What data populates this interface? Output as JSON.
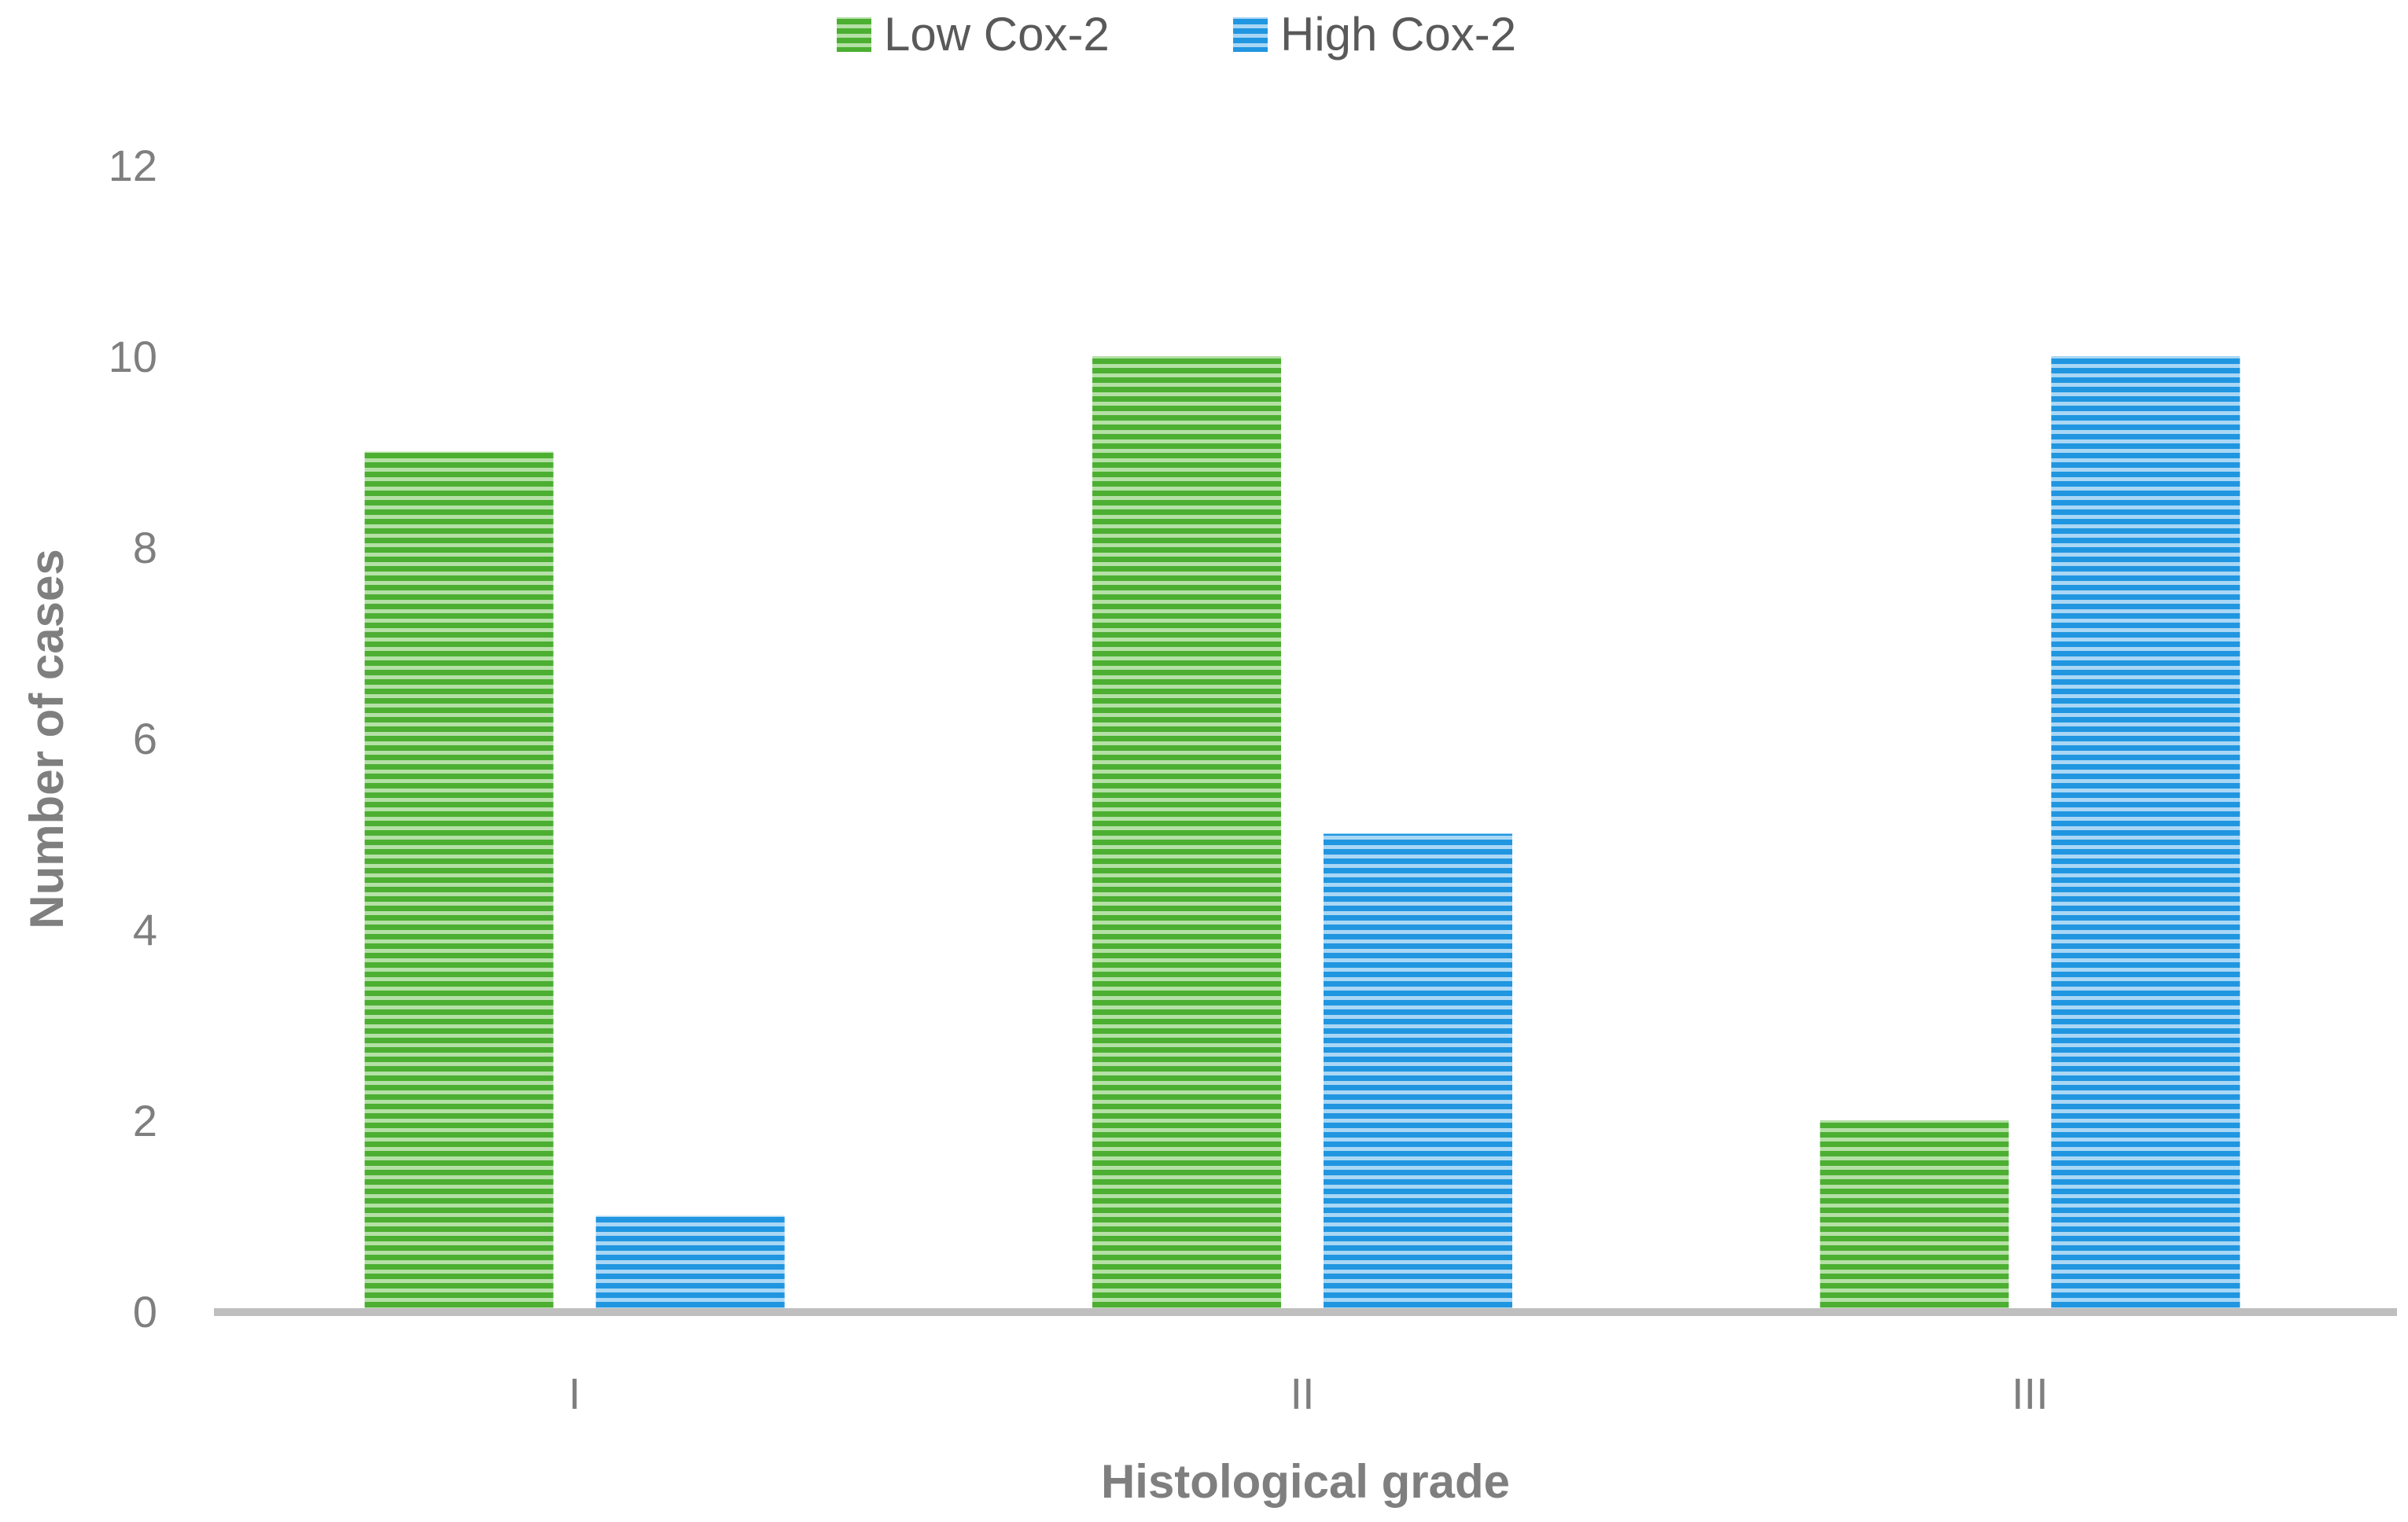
{
  "chart_data": {
    "type": "bar",
    "title": "",
    "xlabel": "Histological grade",
    "ylabel": "Number of cases",
    "categories": [
      "I",
      "II",
      "III"
    ],
    "series": [
      {
        "name": "Low Cox-2",
        "values": [
          9,
          10,
          2
        ],
        "color": "#4caf32"
      },
      {
        "name": "High Cox-2",
        "values": [
          1,
          5,
          10
        ],
        "color": "#2196e0"
      }
    ],
    "ylim": [
      0,
      12
    ],
    "yticks": [
      "0",
      "2",
      "4",
      "6",
      "8",
      "10",
      "12"
    ],
    "grid": false,
    "legend_position": "top-center",
    "bar_fill": "horizontal-stripes"
  }
}
